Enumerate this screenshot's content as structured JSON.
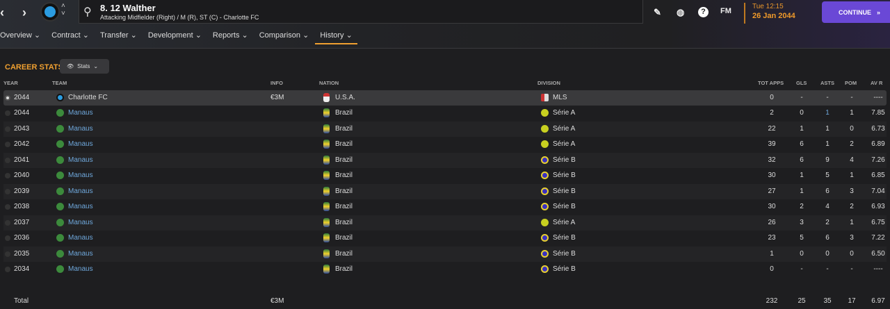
{
  "header": {
    "player_name": "8. 12 Walther",
    "player_position": "Attacking Midfielder (Right) / M (R), ST (C) - Charlotte FC",
    "time": "Tue 12:15",
    "date": "26 Jan 2044",
    "continue_label": "CONTINUE",
    "fm_label": "FM"
  },
  "tabs": [
    "Overview",
    "Contract",
    "Transfer",
    "Development",
    "Reports",
    "Comparison",
    "History"
  ],
  "active_tab": "History",
  "section": {
    "title": "CAREER STATS",
    "view_button": "Stats"
  },
  "columns": [
    "YEAR",
    "TEAM",
    "INFO",
    "NATION",
    "DIVISION",
    "TOT APPS",
    "GLS",
    "ASTS",
    "POM",
    "AV R"
  ],
  "colors": {
    "accent": "#f0a030",
    "continue": "#6a48d6",
    "link": "#6fa8dc"
  },
  "rows": [
    {
      "year": "2044",
      "team": "Charlotte FC",
      "info": "€3M",
      "nation": "U.S.A.",
      "division": "MLS",
      "apps": "0",
      "gls": "-",
      "asts": "-",
      "pom": "-",
      "avr": "----"
    },
    {
      "year": "2044",
      "team": "Manaus",
      "info": "",
      "nation": "Brazil",
      "division": "Série A",
      "apps": "2",
      "gls": "0",
      "asts": "1",
      "pom": "1",
      "avr": "7.85"
    },
    {
      "year": "2043",
      "team": "Manaus",
      "info": "",
      "nation": "Brazil",
      "division": "Série A",
      "apps": "22",
      "gls": "1",
      "asts": "1",
      "pom": "0",
      "avr": "6.73"
    },
    {
      "year": "2042",
      "team": "Manaus",
      "info": "",
      "nation": "Brazil",
      "division": "Série A",
      "apps": "39",
      "gls": "6",
      "asts": "1",
      "pom": "2",
      "avr": "6.89"
    },
    {
      "year": "2041",
      "team": "Manaus",
      "info": "",
      "nation": "Brazil",
      "division": "Série B",
      "apps": "32",
      "gls": "6",
      "asts": "9",
      "pom": "4",
      "avr": "7.26"
    },
    {
      "year": "2040",
      "team": "Manaus",
      "info": "",
      "nation": "Brazil",
      "division": "Série B",
      "apps": "30",
      "gls": "1",
      "asts": "5",
      "pom": "1",
      "avr": "6.85"
    },
    {
      "year": "2039",
      "team": "Manaus",
      "info": "",
      "nation": "Brazil",
      "division": "Série B",
      "apps": "27",
      "gls": "1",
      "asts": "6",
      "pom": "3",
      "avr": "7.04"
    },
    {
      "year": "2038",
      "team": "Manaus",
      "info": "",
      "nation": "Brazil",
      "division": "Série B",
      "apps": "30",
      "gls": "2",
      "asts": "4",
      "pom": "2",
      "avr": "6.93"
    },
    {
      "year": "2037",
      "team": "Manaus",
      "info": "",
      "nation": "Brazil",
      "division": "Série A",
      "apps": "26",
      "gls": "3",
      "asts": "2",
      "pom": "1",
      "avr": "6.75"
    },
    {
      "year": "2036",
      "team": "Manaus",
      "info": "",
      "nation": "Brazil",
      "division": "Série B",
      "apps": "23",
      "gls": "5",
      "asts": "6",
      "pom": "3",
      "avr": "7.22"
    },
    {
      "year": "2035",
      "team": "Manaus",
      "info": "",
      "nation": "Brazil",
      "division": "Série B",
      "apps": "1",
      "gls": "0",
      "asts": "0",
      "pom": "0",
      "avr": "6.50"
    },
    {
      "year": "2034",
      "team": "Manaus",
      "info": "",
      "nation": "Brazil",
      "division": "Série B",
      "apps": "0",
      "gls": "-",
      "asts": "-",
      "pom": "-",
      "avr": "----"
    }
  ],
  "total": {
    "label": "Total",
    "info": "€3M",
    "apps": "232",
    "gls": "25",
    "asts": "35",
    "pom": "17",
    "avr": "6.97"
  }
}
